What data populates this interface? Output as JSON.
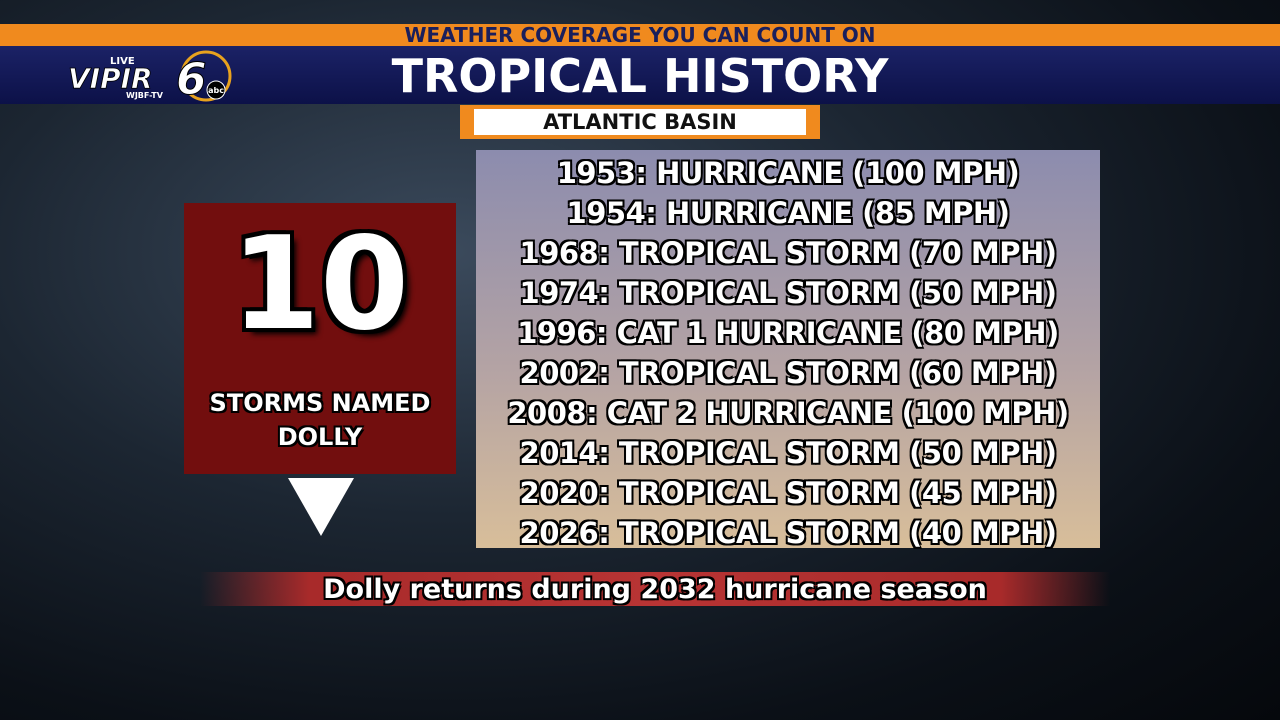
{
  "header": {
    "tagline": "WEATHER COVERAGE YOU CAN COUNT ON",
    "title": "TROPICAL HISTORY"
  },
  "logo": {
    "live": "LIVE",
    "brand": "VIPIR",
    "channel": "6",
    "station": "WJBF-TV",
    "network": "abc"
  },
  "subtitle": "ATLANTIC BASIN",
  "stat": {
    "number": 10,
    "label_lines": [
      "STORMS NAMED",
      "DOLLY"
    ]
  },
  "history": [
    "1953: HURRICANE (100 MPH)",
    "1954: HURRICANE (85 MPH)",
    "1968: TROPICAL STORM (70 MPH)",
    "1974: TROPICAL STORM (50 MPH)",
    "1996: CAT 1 HURRICANE (80 MPH)",
    "2002: TROPICAL STORM (60 MPH)",
    "2008: CAT 2 HURRICANE (100 MPH)",
    "2014: TROPICAL STORM (50 MPH)",
    "2020: TROPICAL STORM (45 MPH)",
    "2026: TROPICAL STORM (40 MPH)"
  ],
  "footer": "Dolly returns during 2032 hurricane season"
}
